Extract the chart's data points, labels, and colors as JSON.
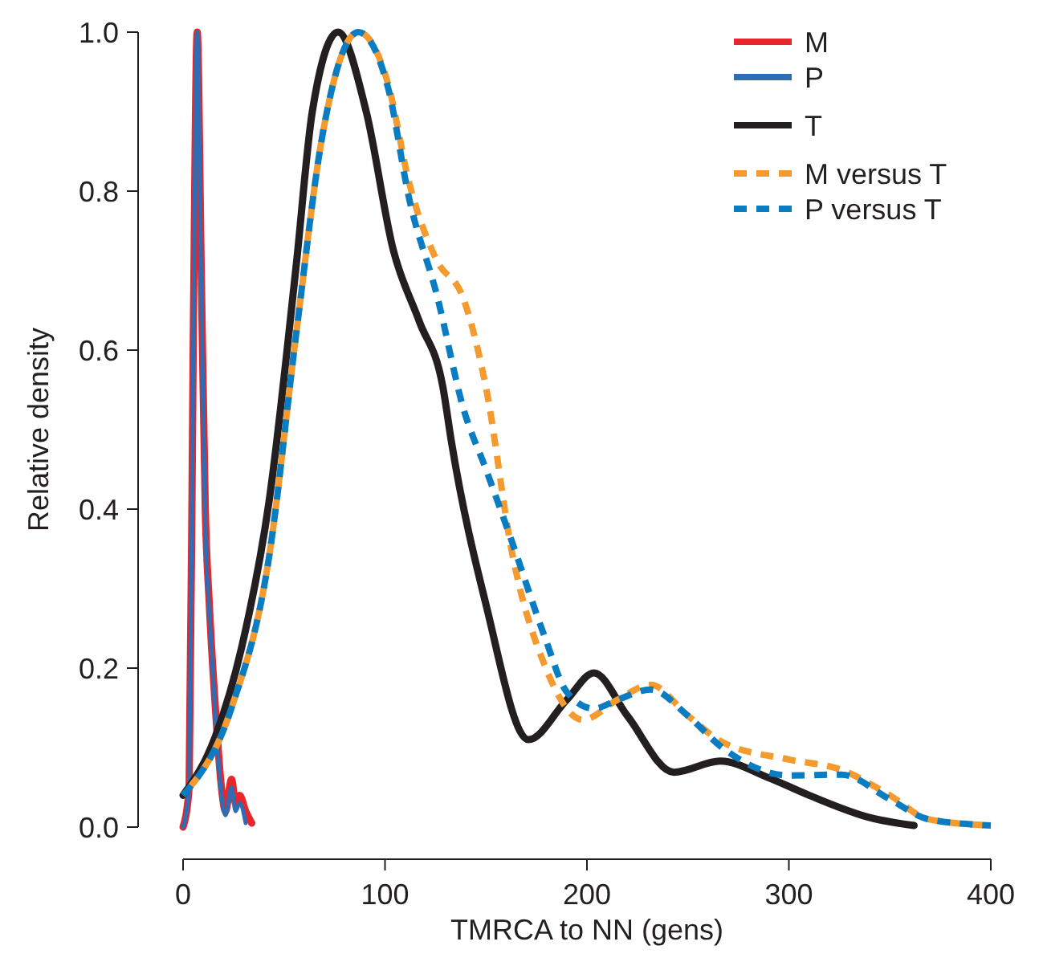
{
  "chart_data": {
    "type": "line",
    "xlabel": "TMRCA to NN (gens)",
    "ylabel": "Relative density",
    "xlim": [
      0,
      400
    ],
    "ylim": [
      0,
      1
    ],
    "xticks": [
      0,
      100,
      200,
      300,
      400
    ],
    "yticks": [
      {
        "value": 0,
        "label": "0.0"
      },
      {
        "value": 0.2,
        "label": "0.2"
      },
      {
        "value": 0.4,
        "label": "0.4"
      },
      {
        "value": 0.6,
        "label": "0.6"
      },
      {
        "value": 0.8,
        "label": "0.8"
      },
      {
        "value": 1,
        "label": "1.0"
      }
    ],
    "grid": false,
    "legend": "top right",
    "series": [
      {
        "name": "M",
        "color": "#e8262b",
        "line_style": "solid",
        "x": [
          0,
          3,
          5,
          7,
          9,
          11,
          13,
          16,
          19,
          21,
          24,
          26,
          28,
          31,
          34
        ],
        "values": [
          0,
          0.05,
          0.6,
          1.0,
          0.7,
          0.4,
          0.28,
          0.15,
          0.05,
          0.02,
          0.06,
          0.03,
          0.04,
          0.02,
          0.005
        ]
      },
      {
        "name": "P",
        "color": "#2e6db4",
        "line_style": "solid",
        "x": [
          0,
          3,
          5,
          7,
          9,
          11,
          13,
          16,
          19,
          21,
          24,
          26,
          28,
          31
        ],
        "values": [
          0,
          0.05,
          0.6,
          1.0,
          0.68,
          0.38,
          0.27,
          0.14,
          0.04,
          0.015,
          0.05,
          0.02,
          0.03,
          0.005
        ]
      },
      {
        "name": "T",
        "color": "#231f20",
        "line_style": "solid",
        "x": [
          0,
          16,
          29,
          42.6,
          56,
          64,
          76.7,
          90.7,
          104,
          117,
          128.7,
          133,
          150,
          171,
          190,
          203.5,
          220,
          243,
          266,
          290,
          310,
          340,
          362
        ],
        "values": [
          0.04,
          0.114,
          0.226,
          0.41,
          0.706,
          0.9,
          1.0,
          0.9,
          0.727,
          0.636,
          0.553,
          0.483,
          0.28,
          0.11,
          0.16,
          0.194,
          0.14,
          0.069,
          0.083,
          0.062,
          0.04,
          0.012,
          0.002
        ]
      },
      {
        "name": "M versus T",
        "color": "#f59a2e",
        "line_style": "dashed",
        "x": [
          0,
          24,
          42.6,
          56,
          69,
          86.8,
          101.5,
          112,
          125.6,
          138.8,
          150,
          163,
          179,
          198,
          215,
          231.6,
          250,
          267,
          300,
          326,
          350,
          369,
          400
        ],
        "values": [
          0.04,
          0.15,
          0.34,
          0.62,
          0.87,
          1.0,
          0.935,
          0.81,
          0.713,
          0.665,
          0.553,
          0.344,
          0.204,
          0.135,
          0.16,
          0.179,
          0.14,
          0.107,
          0.085,
          0.072,
          0.04,
          0.01,
          0.002
        ]
      },
      {
        "name": "P versus T",
        "color": "#0a7dc2",
        "line_style": "dashed",
        "x": [
          0,
          24,
          42.6,
          56,
          69,
          86.8,
          101.5,
          112,
          125.6,
          139,
          150,
          163,
          179,
          190,
          203.5,
          215,
          231.6,
          250,
          267,
          300,
          326,
          350,
          369,
          400
        ],
        "values": [
          0.04,
          0.15,
          0.34,
          0.62,
          0.87,
          1.0,
          0.93,
          0.79,
          0.67,
          0.525,
          0.45,
          0.358,
          0.24,
          0.17,
          0.149,
          0.16,
          0.173,
          0.14,
          0.1,
          0.065,
          0.066,
          0.035,
          0.01,
          0.002
        ]
      }
    ]
  }
}
